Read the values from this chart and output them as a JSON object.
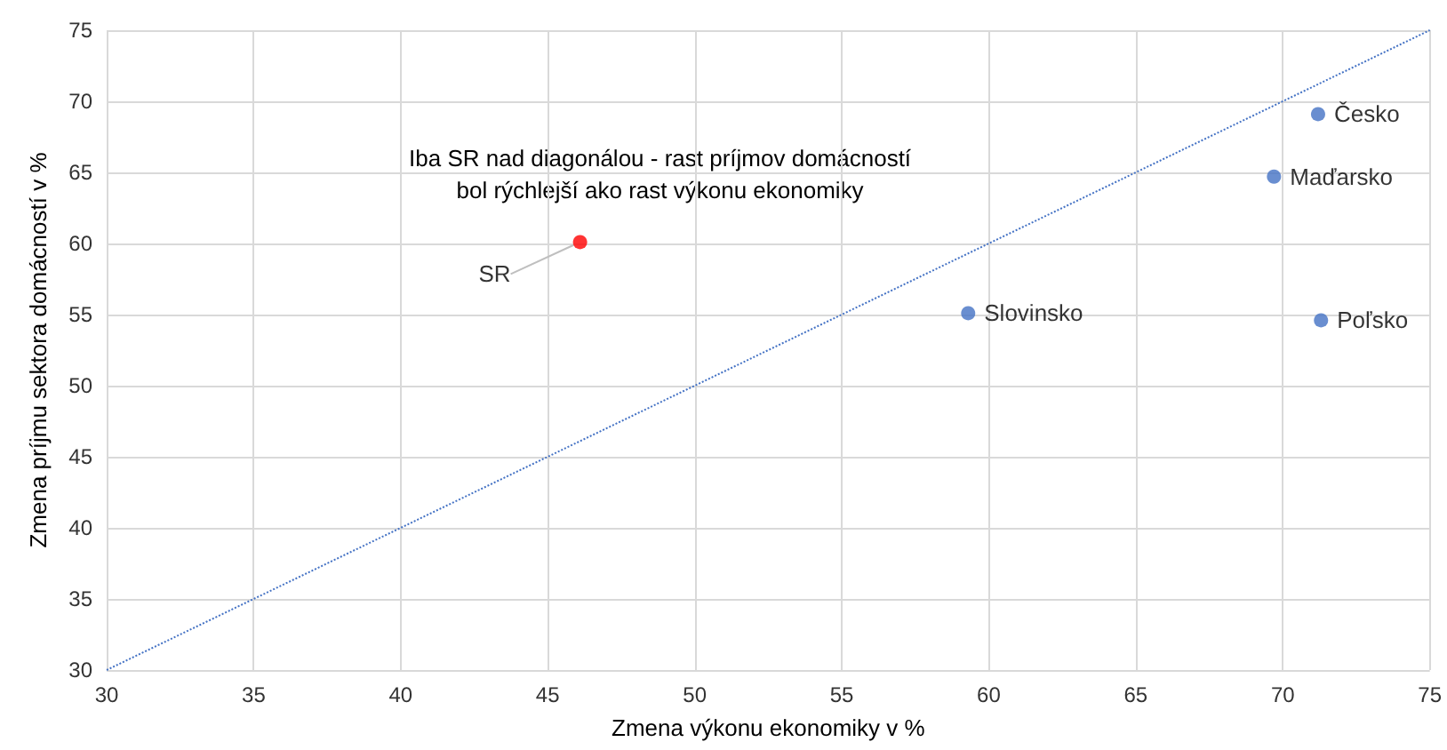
{
  "chart_data": {
    "type": "scatter",
    "xlabel": "Zmena výkonu ekonomiky v %",
    "ylabel": "Zmena príjmu sektora domácností v %",
    "annotations": [
      "Iba SR nad diagonálou - rast príjmov domácností\nbol rýchlejší ako rast výkonu ekonomiky"
    ],
    "series": [
      {
        "name": "SR",
        "color": "#ff0000",
        "x": [
          46.1
        ],
        "values": [
          60.1
        ]
      },
      {
        "name": "Slovinsko",
        "color": "#4472c4",
        "x": [
          59.3
        ],
        "values": [
          55.1
        ]
      },
      {
        "name": "Česko",
        "color": "#4472c4",
        "x": [
          71.2
        ],
        "values": [
          69.1
        ]
      },
      {
        "name": "Maďarsko",
        "color": "#4472c4",
        "x": [
          69.7
        ],
        "values": [
          64.7
        ]
      },
      {
        "name": "Poľsko",
        "color": "#4472c4",
        "x": [
          71.3
        ],
        "values": [
          54.6
        ]
      },
      {
        "type": "line",
        "color": "#4472c4",
        "line_style": "dotted",
        "marker": "none",
        "x": [
          30,
          75
        ],
        "values": [
          30,
          75
        ]
      }
    ],
    "xlim": [
      30,
      75
    ],
    "xticks": [
      30,
      35,
      40,
      45,
      50,
      55,
      60,
      65,
      70,
      75
    ],
    "ylim": [
      30,
      75
    ],
    "yticks": [
      30,
      35,
      40,
      45,
      50,
      55,
      60,
      65,
      70,
      75
    ],
    "grid": true,
    "legend": false,
    "marker": "circle"
  }
}
